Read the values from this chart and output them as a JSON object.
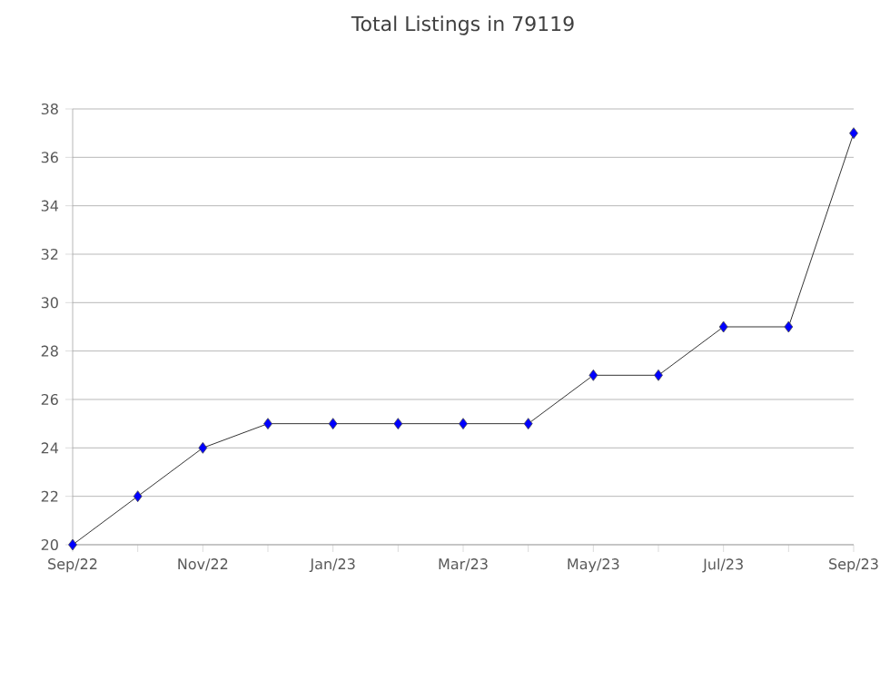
{
  "chart_data": {
    "type": "line",
    "title": "Total Listings in 79119",
    "categories": [
      "Sep/22",
      null,
      "Nov/22",
      null,
      "Jan/23",
      null,
      "Mar/23",
      null,
      "May/23",
      null,
      "Jul/23",
      null,
      "Sep/23"
    ],
    "series": [
      {
        "color": "#0000ff",
        "values": [
          20,
          22,
          24,
          25,
          25,
          25,
          25,
          25,
          27,
          27,
          29,
          29,
          37
        ]
      }
    ],
    "ylim": [
      20,
      38
    ],
    "yticks": [
      20,
      22,
      24,
      26,
      28,
      30,
      32,
      34,
      36,
      38
    ],
    "grid": "y",
    "marker": "diamond",
    "line_style": "solid"
  }
}
